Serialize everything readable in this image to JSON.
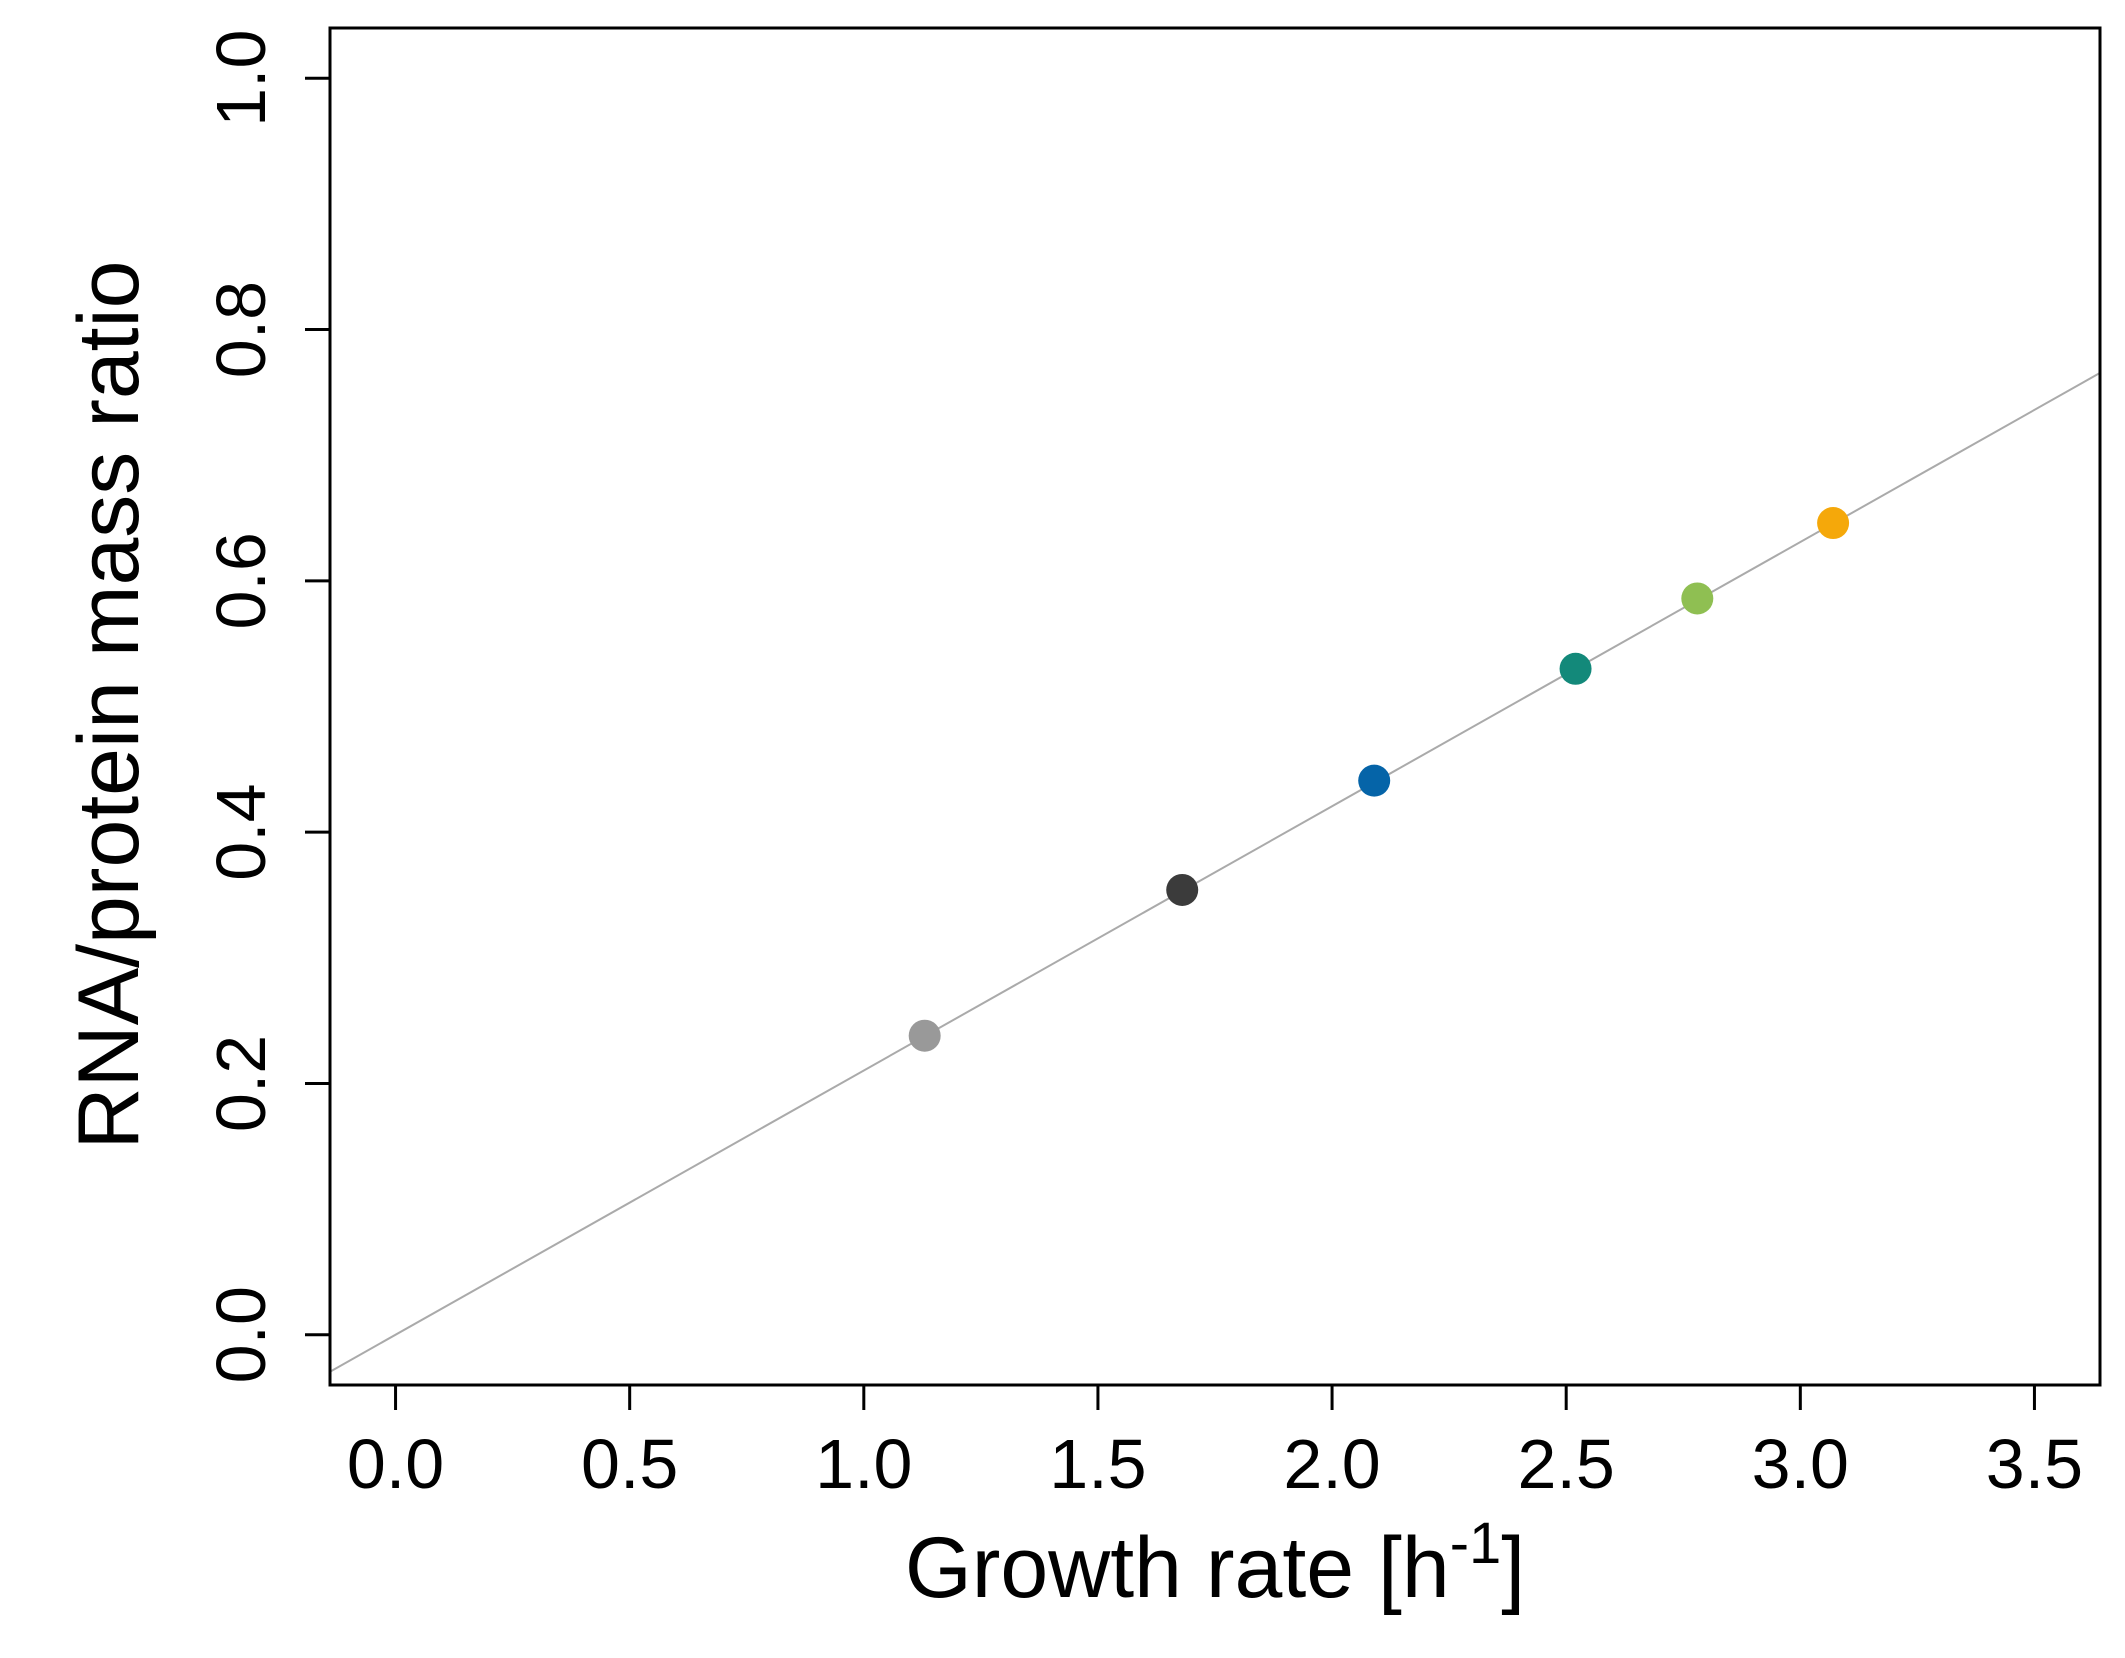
{
  "chart_data": {
    "type": "scatter",
    "title": "",
    "xlabel": {
      "main": "Growth rate [h",
      "superscript": "-1",
      "suffix": "]"
    },
    "ylabel": "RNA/protein mass ratio",
    "xlim": [
      -0.14,
      3.64
    ],
    "ylim": [
      -0.04,
      1.04
    ],
    "x_ticks": [
      0.0,
      0.5,
      1.0,
      1.5,
      2.0,
      2.5,
      3.0,
      3.5
    ],
    "x_tick_labels": [
      "0.0",
      "0.5",
      "1.0",
      "1.5",
      "2.0",
      "2.5",
      "3.0",
      "3.5"
    ],
    "y_ticks": [
      0.0,
      0.2,
      0.4,
      0.6,
      0.8,
      1.0
    ],
    "y_tick_labels": [
      "0.0",
      "0.2",
      "0.4",
      "0.6",
      "0.8",
      "1.0"
    ],
    "grid": false,
    "points": [
      {
        "x": 1.13,
        "y": 0.238,
        "color": "#999999"
      },
      {
        "x": 1.68,
        "y": 0.354,
        "color": "#3b3b3b"
      },
      {
        "x": 2.09,
        "y": 0.441,
        "color": "#0564a8"
      },
      {
        "x": 2.52,
        "y": 0.53,
        "color": "#13897a"
      },
      {
        "x": 2.78,
        "y": 0.586,
        "color": "#8fbf52"
      },
      {
        "x": 3.07,
        "y": 0.646,
        "color": "#f5a80a"
      }
    ],
    "fit_line": {
      "slope": 0.2103,
      "intercept": 0.0,
      "color": "#aaaaaa"
    }
  }
}
